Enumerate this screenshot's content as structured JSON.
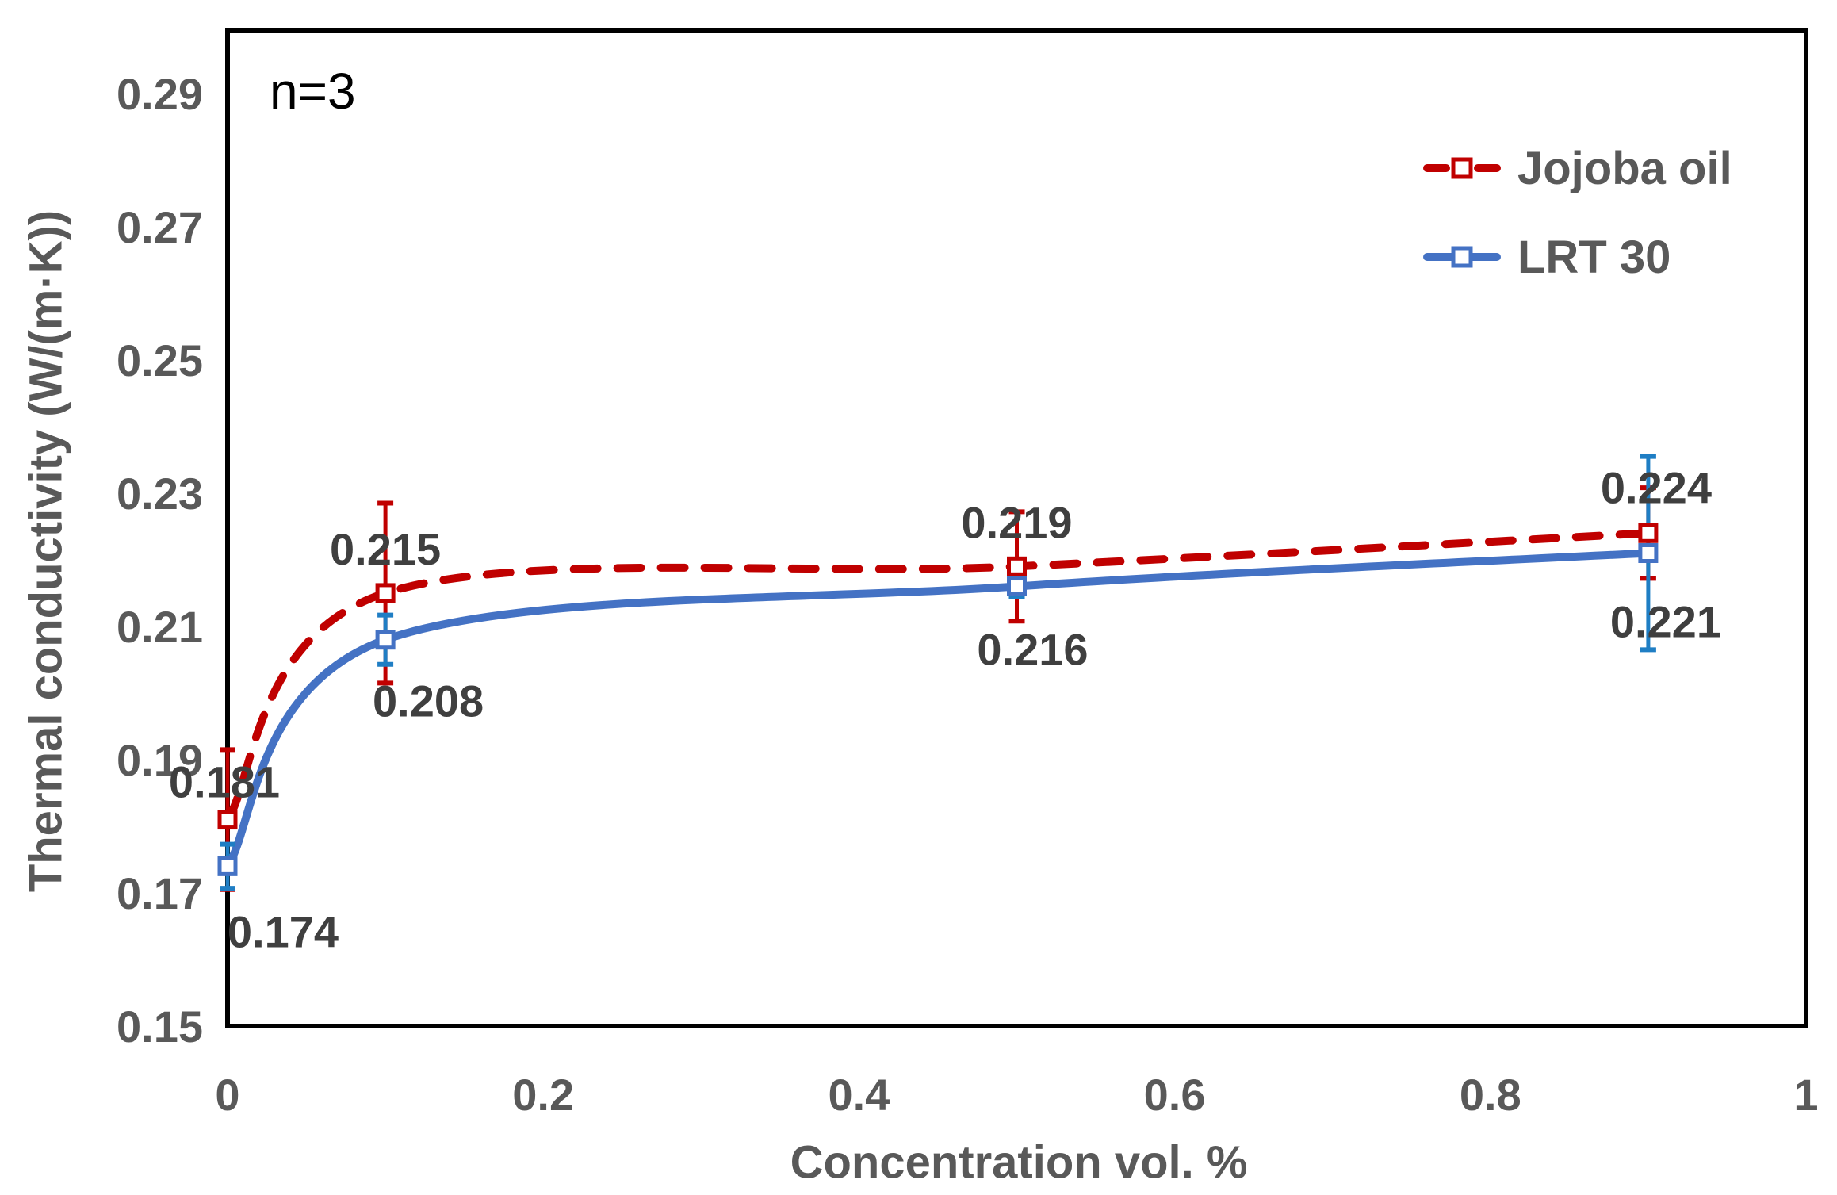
{
  "chart_data": {
    "type": "line",
    "annotation": "n=3",
    "xlabel": "Concentration vol. %",
    "ylabel": "Thermal conductivity (W/(m·K))",
    "xlim": [
      0,
      1
    ],
    "ylim": [
      0.15,
      0.2995
    ],
    "grid": false,
    "legend_position": "inside-top-right",
    "x_ticks": [
      0,
      0.2,
      0.4,
      0.6,
      0.8,
      1
    ],
    "x_tick_labels": [
      "0",
      "0.2",
      "0.4",
      "0.6",
      "0.8",
      "1"
    ],
    "y_ticks": [
      0.15,
      0.17,
      0.19,
      0.21,
      0.23,
      0.25,
      0.27,
      0.29
    ],
    "y_tick_labels": [
      "0.15",
      "0.17",
      "0.19",
      "0.21",
      "0.23",
      "0.25",
      "0.27",
      "0.29"
    ],
    "axis_color": "#000000",
    "tick_label_color": "#595959",
    "data_label_color": "#3f3f3f",
    "series": [
      {
        "name": "Jojoba oil",
        "color": "#C00000",
        "error_color": "#C00000",
        "line_style": "dashed",
        "marker": "open-square",
        "x": [
          0,
          0.1,
          0.5,
          0.9
        ],
        "y": [
          0.181,
          0.215,
          0.219,
          0.224
        ],
        "error": [
          0.0105,
          0.0135,
          0.0082,
          0.0068
        ],
        "labels": [
          "0.181",
          "0.215",
          "0.219",
          "0.224"
        ]
      },
      {
        "name": "LRT 30",
        "color": "#4472C4",
        "error_color": "#1F7EC4",
        "line_style": "solid",
        "marker": "open-square",
        "x": [
          0,
          0.1,
          0.5,
          0.9
        ],
        "y": [
          0.174,
          0.208,
          0.216,
          0.221
        ],
        "error": [
          0.0033,
          0.0037,
          0.0015,
          0.0145
        ],
        "labels": [
          "0.174",
          "0.208",
          "0.216",
          "0.221"
        ]
      }
    ]
  }
}
